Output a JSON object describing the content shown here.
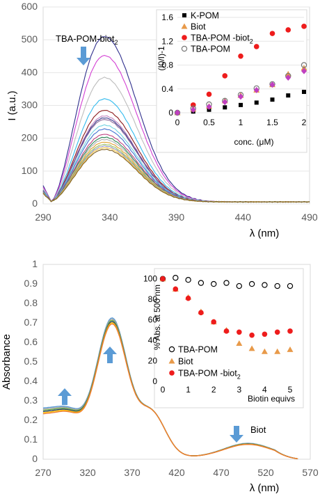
{
  "chart_data": [
    {
      "type": "line",
      "xlabel": "λ (nm)",
      "ylabel": "I (a.u.)",
      "xlim": [
        290,
        490
      ],
      "ylim": [
        0,
        600
      ],
      "x_ticks": [
        "290",
        "340",
        "390",
        "440",
        "490"
      ],
      "y_ticks": [
        "0",
        "100",
        "200",
        "300",
        "400",
        "500",
        "600"
      ],
      "annotation": "TBA-POM-biot",
      "annotation_sub": "2",
      "arrow": "down",
      "series_peaks": [
        510,
        452,
        385,
        320,
        285,
        268,
        262,
        257,
        240,
        228,
        212,
        203,
        196,
        188,
        181,
        176,
        171,
        166
      ],
      "series_colors": [
        "#2E2E8C",
        "#D33FD3",
        "#BDBDBD",
        "#33BBEE",
        "#8B1A1A",
        "#C084C0",
        "#3A3A8A",
        "#8B6B9B",
        "#6FD3E0",
        "#4070D0",
        "#C04080",
        "#2E8B57",
        "#B0B0B0",
        "#E0A030",
        "#98C060",
        "#9090C0",
        "#F4C542",
        "#806020"
      ]
    },
    {
      "type": "scatter",
      "xlabel": "conc. (μM)",
      "ylabel": "(I0/I)-1",
      "xlim": [
        0,
        2
      ],
      "ylim": [
        0,
        1.6
      ],
      "x_ticks": [
        "0",
        "0.5",
        "1",
        "1.5",
        "2"
      ],
      "y_ticks": [
        "0",
        "0.4",
        "0.8",
        "1.2",
        "1.6"
      ],
      "legend_position": "top-left",
      "series": [
        {
          "name": "K-POM",
          "marker": "square",
          "color": "#000000",
          "x": [
            0,
            0.25,
            0.5,
            0.75,
            1,
            1.25,
            1.5,
            1.75,
            2
          ],
          "y": [
            0,
            0.02,
            0.05,
            0.09,
            0.13,
            0.17,
            0.22,
            0.29,
            0.35
          ]
        },
        {
          "name": "Biot",
          "marker": "triangle",
          "color": "#E89A4A",
          "x": [
            0,
            0.25,
            0.5,
            0.75,
            1,
            1.25,
            1.5,
            1.75,
            2
          ],
          "y": [
            0,
            0.06,
            0.11,
            0.2,
            0.29,
            0.38,
            0.47,
            0.65,
            0.75
          ]
        },
        {
          "name": "TBA-POM -biot",
          "name_sub": "2",
          "marker": "circle",
          "color": "#EE1C1C",
          "x": [
            0,
            0.25,
            0.5,
            0.75,
            1,
            1.25,
            1.5,
            1.75,
            2
          ],
          "y": [
            0,
            0.13,
            0.31,
            0.62,
            0.95,
            1.11,
            1.33,
            1.39,
            1.45
          ]
        },
        {
          "name": "TBA-POM",
          "marker": "open-circle",
          "color": "#777777",
          "x": [
            0,
            0.25,
            0.5,
            0.75,
            1,
            1.25,
            1.5,
            1.75,
            2
          ],
          "y": [
            0,
            0.07,
            0.14,
            0.2,
            0.3,
            0.41,
            0.48,
            0.62,
            0.8
          ]
        },
        {
          "name": "",
          "marker": "diamond",
          "color": "#C040C0",
          "x": [
            0,
            0.25,
            0.5,
            0.75,
            1,
            1.25,
            1.5,
            1.75,
            2
          ],
          "y": [
            0,
            0.05,
            0.1,
            0.18,
            0.27,
            0.38,
            0.47,
            0.59,
            0.7
          ]
        }
      ]
    },
    {
      "type": "line",
      "xlabel": "λ (nm)",
      "ylabel": "Absorbance",
      "xlim": [
        270,
        570
      ],
      "ylim": [
        0,
        1
      ],
      "x_ticks": [
        "270",
        "320",
        "370",
        "420",
        "470",
        "520",
        "570"
      ],
      "y_ticks": [
        "0",
        "0.1",
        "0.2",
        "0.3",
        "0.4",
        "0.5",
        "0.6",
        "0.7",
        "0.8",
        "0.9",
        "1"
      ],
      "annotation": "Biot",
      "series_peaks": [
        0.665,
        0.66,
        0.655,
        0.65,
        0.645,
        0.64
      ],
      "series_colors": [
        "#5B9BD5",
        "#A5A5A5",
        "#70AD47",
        "#264478",
        "#FFC000",
        "#ED7D31"
      ]
    },
    {
      "type": "scatter",
      "xlabel": "Biotin equivs",
      "ylabel": "% Abs. at 500 nm",
      "xlim": [
        0,
        5
      ],
      "ylim": [
        0,
        110
      ],
      "x_ticks": [
        "0",
        "1",
        "2",
        "3",
        "4",
        "5"
      ],
      "y_ticks": [
        "0",
        "20",
        "40",
        "60",
        "80",
        "100"
      ],
      "legend_position": "bottom-left",
      "series": [
        {
          "name": "TBA-POM",
          "marker": "open-circle",
          "color": "#000000",
          "x": [
            0,
            0.5,
            1,
            1.5,
            2,
            2.5,
            3,
            3.5,
            4,
            4.5,
            5
          ],
          "y": [
            100,
            101,
            99,
            96,
            95,
            96,
            93,
            95,
            94,
            93,
            93
          ]
        },
        {
          "name": "Biot",
          "marker": "triangle",
          "color": "#E89A4A",
          "x": [
            0,
            0.5,
            1,
            1.5,
            2,
            2.5,
            3,
            3.5,
            4,
            4.5,
            5
          ],
          "y": [
            100,
            90,
            82,
            68,
            58,
            50,
            37,
            32,
            29,
            29,
            31
          ]
        },
        {
          "name": "TBA-POM -biot",
          "name_sub": "2",
          "marker": "circle",
          "color": "#EE1C1C",
          "x": [
            0,
            0.5,
            1,
            1.5,
            2,
            2.5,
            3,
            3.5,
            4,
            4.5,
            5
          ],
          "y": [
            100,
            90,
            81,
            67,
            58,
            49,
            48,
            45,
            46,
            48,
            49
          ]
        }
      ]
    }
  ]
}
